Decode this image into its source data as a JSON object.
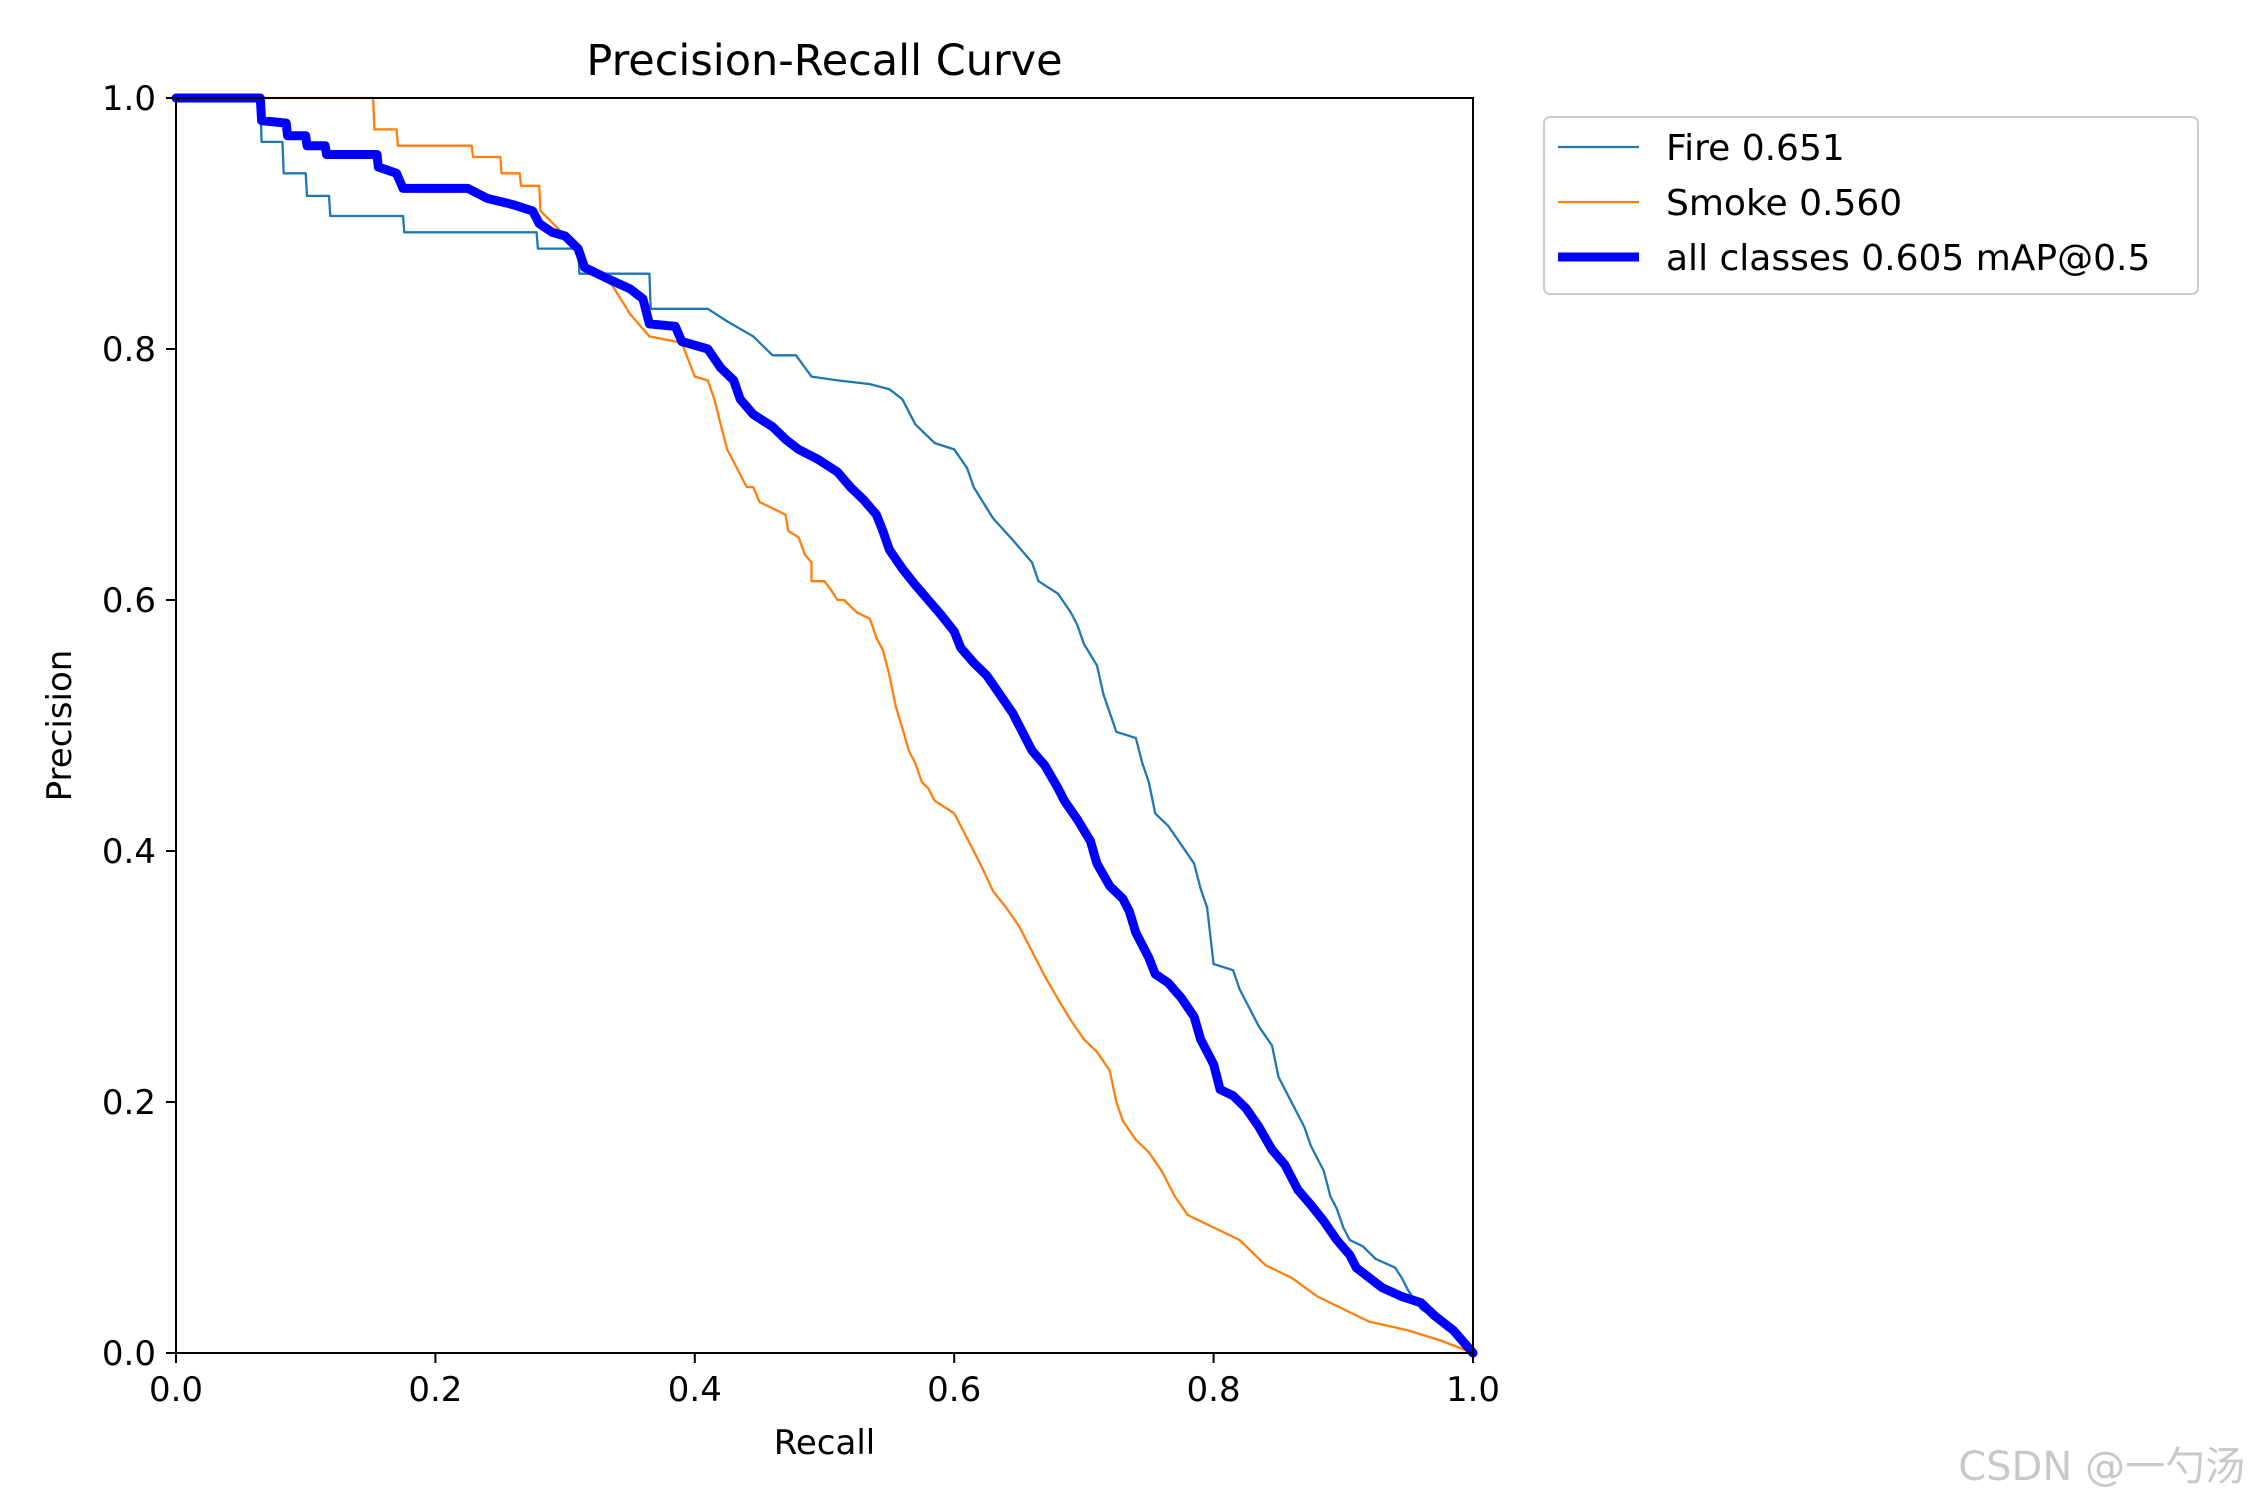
{
  "watermark": "CSDN @一勺汤",
  "chart_data": {
    "type": "line",
    "title": "Precision-Recall Curve",
    "xlabel": "Recall",
    "ylabel": "Precision",
    "xlim": [
      0,
      1
    ],
    "ylim": [
      0,
      1
    ],
    "xticks": [
      "0.0",
      "0.2",
      "0.4",
      "0.6",
      "0.8",
      "1.0"
    ],
    "yticks": [
      "0.0",
      "0.2",
      "0.4",
      "0.6",
      "0.8",
      "1.0"
    ],
    "grid": false,
    "legend_position": "outside-top-right",
    "series": [
      {
        "name": "Fire 0.651",
        "color": "#1f77b4",
        "width": "thin",
        "points": [
          [
            0.0,
            1.0
          ],
          [
            0.065,
            1.0
          ],
          [
            0.066,
            0.965
          ],
          [
            0.082,
            0.965
          ],
          [
            0.083,
            0.94
          ],
          [
            0.1,
            0.94
          ],
          [
            0.101,
            0.922
          ],
          [
            0.118,
            0.922
          ],
          [
            0.119,
            0.906
          ],
          [
            0.175,
            0.906
          ],
          [
            0.176,
            0.893
          ],
          [
            0.278,
            0.893
          ],
          [
            0.279,
            0.88
          ],
          [
            0.31,
            0.88
          ],
          [
            0.311,
            0.86
          ],
          [
            0.365,
            0.86
          ],
          [
            0.366,
            0.832
          ],
          [
            0.41,
            0.832
          ],
          [
            0.425,
            0.822
          ],
          [
            0.445,
            0.81
          ],
          [
            0.46,
            0.795
          ],
          [
            0.478,
            0.795
          ],
          [
            0.49,
            0.778
          ],
          [
            0.51,
            0.775
          ],
          [
            0.535,
            0.772
          ],
          [
            0.55,
            0.768
          ],
          [
            0.56,
            0.76
          ],
          [
            0.57,
            0.74
          ],
          [
            0.585,
            0.725
          ],
          [
            0.6,
            0.72
          ],
          [
            0.61,
            0.705
          ],
          [
            0.615,
            0.69
          ],
          [
            0.63,
            0.665
          ],
          [
            0.645,
            0.648
          ],
          [
            0.66,
            0.63
          ],
          [
            0.665,
            0.615
          ],
          [
            0.68,
            0.605
          ],
          [
            0.69,
            0.59
          ],
          [
            0.695,
            0.58
          ],
          [
            0.7,
            0.565
          ],
          [
            0.71,
            0.548
          ],
          [
            0.715,
            0.525
          ],
          [
            0.725,
            0.495
          ],
          [
            0.74,
            0.49
          ],
          [
            0.745,
            0.47
          ],
          [
            0.75,
            0.455
          ],
          [
            0.755,
            0.43
          ],
          [
            0.765,
            0.42
          ],
          [
            0.775,
            0.405
          ],
          [
            0.785,
            0.39
          ],
          [
            0.79,
            0.37
          ],
          [
            0.795,
            0.355
          ],
          [
            0.8,
            0.31
          ],
          [
            0.815,
            0.305
          ],
          [
            0.82,
            0.29
          ],
          [
            0.83,
            0.27
          ],
          [
            0.835,
            0.26
          ],
          [
            0.845,
            0.245
          ],
          [
            0.85,
            0.22
          ],
          [
            0.86,
            0.2
          ],
          [
            0.865,
            0.19
          ],
          [
            0.87,
            0.18
          ],
          [
            0.875,
            0.165
          ],
          [
            0.885,
            0.145
          ],
          [
            0.89,
            0.125
          ],
          [
            0.895,
            0.115
          ],
          [
            0.9,
            0.1
          ],
          [
            0.905,
            0.09
          ],
          [
            0.915,
            0.085
          ],
          [
            0.925,
            0.075
          ],
          [
            0.94,
            0.068
          ],
          [
            0.945,
            0.06
          ],
          [
            0.95,
            0.05
          ],
          [
            0.96,
            0.035
          ],
          [
            0.975,
            0.025
          ],
          [
            0.99,
            0.012
          ],
          [
            1.0,
            0.0
          ]
        ]
      },
      {
        "name": "Smoke 0.560",
        "color": "#ff7f0e",
        "width": "thin",
        "points": [
          [
            0.0,
            1.0
          ],
          [
            0.152,
            1.0
          ],
          [
            0.153,
            0.975
          ],
          [
            0.17,
            0.975
          ],
          [
            0.171,
            0.962
          ],
          [
            0.228,
            0.962
          ],
          [
            0.229,
            0.953
          ],
          [
            0.25,
            0.953
          ],
          [
            0.251,
            0.94
          ],
          [
            0.265,
            0.94
          ],
          [
            0.266,
            0.93
          ],
          [
            0.28,
            0.93
          ],
          [
            0.281,
            0.91
          ],
          [
            0.31,
            0.88
          ],
          [
            0.315,
            0.862
          ],
          [
            0.335,
            0.853
          ],
          [
            0.35,
            0.828
          ],
          [
            0.365,
            0.81
          ],
          [
            0.39,
            0.805
          ],
          [
            0.4,
            0.778
          ],
          [
            0.41,
            0.775
          ],
          [
            0.415,
            0.76
          ],
          [
            0.42,
            0.74
          ],
          [
            0.425,
            0.72
          ],
          [
            0.435,
            0.7
          ],
          [
            0.44,
            0.69
          ],
          [
            0.445,
            0.69
          ],
          [
            0.45,
            0.678
          ],
          [
            0.47,
            0.668
          ],
          [
            0.472,
            0.655
          ],
          [
            0.48,
            0.65
          ],
          [
            0.485,
            0.636
          ],
          [
            0.49,
            0.63
          ],
          [
            0.49,
            0.615
          ],
          [
            0.5,
            0.615
          ],
          [
            0.505,
            0.608
          ],
          [
            0.51,
            0.6
          ],
          [
            0.515,
            0.6
          ],
          [
            0.525,
            0.59
          ],
          [
            0.535,
            0.585
          ],
          [
            0.54,
            0.57
          ],
          [
            0.545,
            0.56
          ],
          [
            0.55,
            0.54
          ],
          [
            0.555,
            0.515
          ],
          [
            0.56,
            0.498
          ],
          [
            0.565,
            0.48
          ],
          [
            0.57,
            0.47
          ],
          [
            0.575,
            0.455
          ],
          [
            0.58,
            0.45
          ],
          [
            0.585,
            0.44
          ],
          [
            0.6,
            0.43
          ],
          [
            0.605,
            0.42
          ],
          [
            0.61,
            0.41
          ],
          [
            0.62,
            0.39
          ],
          [
            0.63,
            0.368
          ],
          [
            0.64,
            0.355
          ],
          [
            0.65,
            0.34
          ],
          [
            0.66,
            0.32
          ],
          [
            0.67,
            0.3
          ],
          [
            0.68,
            0.282
          ],
          [
            0.69,
            0.265
          ],
          [
            0.7,
            0.25
          ],
          [
            0.71,
            0.24
          ],
          [
            0.72,
            0.225
          ],
          [
            0.725,
            0.2
          ],
          [
            0.73,
            0.185
          ],
          [
            0.74,
            0.17
          ],
          [
            0.75,
            0.16
          ],
          [
            0.76,
            0.145
          ],
          [
            0.77,
            0.125
          ],
          [
            0.78,
            0.11
          ],
          [
            0.8,
            0.1
          ],
          [
            0.82,
            0.09
          ],
          [
            0.83,
            0.08
          ],
          [
            0.84,
            0.07
          ],
          [
            0.86,
            0.06
          ],
          [
            0.88,
            0.045
          ],
          [
            0.9,
            0.035
          ],
          [
            0.92,
            0.025
          ],
          [
            0.95,
            0.018
          ],
          [
            0.975,
            0.01
          ],
          [
            1.0,
            0.0
          ]
        ]
      },
      {
        "name": "all classes 0.605 mAP@0.5",
        "color": "#0000ff",
        "width": "thick",
        "points": [
          [
            0.0,
            1.0
          ],
          [
            0.065,
            1.0
          ],
          [
            0.066,
            0.982
          ],
          [
            0.085,
            0.98
          ],
          [
            0.086,
            0.97
          ],
          [
            0.1,
            0.97
          ],
          [
            0.101,
            0.962
          ],
          [
            0.115,
            0.962
          ],
          [
            0.116,
            0.955
          ],
          [
            0.155,
            0.955
          ],
          [
            0.156,
            0.945
          ],
          [
            0.17,
            0.94
          ],
          [
            0.175,
            0.928
          ],
          [
            0.225,
            0.928
          ],
          [
            0.24,
            0.92
          ],
          [
            0.26,
            0.915
          ],
          [
            0.275,
            0.91
          ],
          [
            0.28,
            0.9
          ],
          [
            0.29,
            0.893
          ],
          [
            0.3,
            0.89
          ],
          [
            0.31,
            0.88
          ],
          [
            0.315,
            0.865
          ],
          [
            0.335,
            0.855
          ],
          [
            0.35,
            0.848
          ],
          [
            0.36,
            0.84
          ],
          [
            0.365,
            0.82
          ],
          [
            0.385,
            0.818
          ],
          [
            0.39,
            0.806
          ],
          [
            0.41,
            0.8
          ],
          [
            0.42,
            0.785
          ],
          [
            0.43,
            0.775
          ],
          [
            0.435,
            0.76
          ],
          [
            0.445,
            0.748
          ],
          [
            0.46,
            0.738
          ],
          [
            0.47,
            0.728
          ],
          [
            0.48,
            0.72
          ],
          [
            0.495,
            0.712
          ],
          [
            0.51,
            0.702
          ],
          [
            0.52,
            0.69
          ],
          [
            0.53,
            0.68
          ],
          [
            0.54,
            0.668
          ],
          [
            0.545,
            0.655
          ],
          [
            0.55,
            0.64
          ],
          [
            0.56,
            0.625
          ],
          [
            0.57,
            0.612
          ],
          [
            0.58,
            0.6
          ],
          [
            0.59,
            0.588
          ],
          [
            0.6,
            0.575
          ],
          [
            0.605,
            0.562
          ],
          [
            0.615,
            0.55
          ],
          [
            0.625,
            0.54
          ],
          [
            0.635,
            0.525
          ],
          [
            0.645,
            0.51
          ],
          [
            0.655,
            0.49
          ],
          [
            0.66,
            0.48
          ],
          [
            0.67,
            0.468
          ],
          [
            0.68,
            0.45
          ],
          [
            0.685,
            0.44
          ],
          [
            0.695,
            0.425
          ],
          [
            0.705,
            0.408
          ],
          [
            0.71,
            0.39
          ],
          [
            0.72,
            0.372
          ],
          [
            0.73,
            0.362
          ],
          [
            0.735,
            0.352
          ],
          [
            0.74,
            0.335
          ],
          [
            0.75,
            0.315
          ],
          [
            0.755,
            0.302
          ],
          [
            0.765,
            0.295
          ],
          [
            0.775,
            0.283
          ],
          [
            0.785,
            0.268
          ],
          [
            0.79,
            0.25
          ],
          [
            0.8,
            0.23
          ],
          [
            0.805,
            0.21
          ],
          [
            0.815,
            0.205
          ],
          [
            0.825,
            0.195
          ],
          [
            0.835,
            0.18
          ],
          [
            0.845,
            0.162
          ],
          [
            0.855,
            0.15
          ],
          [
            0.86,
            0.14
          ],
          [
            0.865,
            0.13
          ],
          [
            0.875,
            0.118
          ],
          [
            0.885,
            0.105
          ],
          [
            0.895,
            0.09
          ],
          [
            0.905,
            0.078
          ],
          [
            0.91,
            0.068
          ],
          [
            0.92,
            0.06
          ],
          [
            0.93,
            0.052
          ],
          [
            0.945,
            0.045
          ],
          [
            0.96,
            0.04
          ],
          [
            0.97,
            0.03
          ],
          [
            0.985,
            0.018
          ],
          [
            1.0,
            0.0
          ]
        ]
      }
    ]
  }
}
